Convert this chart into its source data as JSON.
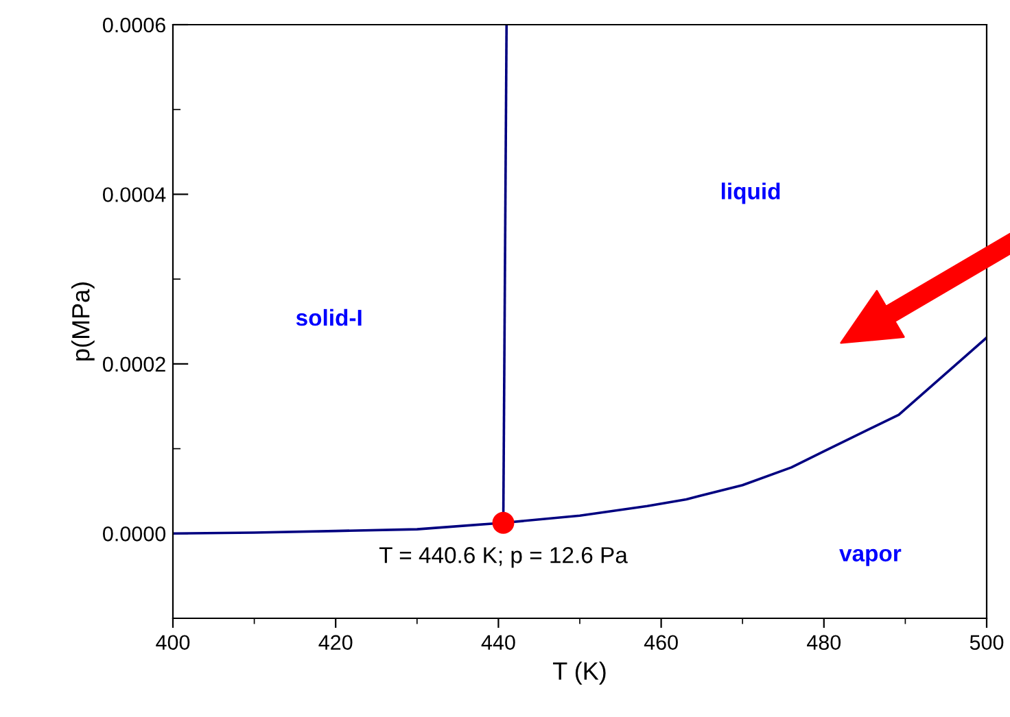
{
  "chart_data": {
    "type": "line",
    "xlabel": "T (K)",
    "ylabel": "p(MPa)",
    "series": [
      {
        "color": "#000080",
        "x": [
          400,
          410,
          420,
          430,
          440.6,
          450,
          458.3,
          463.1,
          470,
          476.0,
          480,
          489.2,
          500
        ],
        "values": [
          0.0,
          1e-06,
          3e-06,
          5e-06,
          1.26e-05,
          2.1e-05,
          3.23e-05,
          4.03e-05,
          5.7e-05,
          7.79e-05,
          9.7e-05,
          0.00014,
          0.000231
        ]
      },
      {
        "type": "line",
        "color": "#000080",
        "x": [
          440.6,
          441.0
        ],
        "values": [
          1.26e-05,
          0.0006
        ]
      },
      {
        "type": "scatter",
        "color": "#ff0000",
        "marker": "circle",
        "x": [
          440.6
        ],
        "values": [
          1.26e-05
        ]
      }
    ],
    "annotations": [
      "solid-I",
      "liquid",
      "vapor",
      {
        "text": "T = 440.6 K; p = 12.6 Pa",
        "x": 440.6,
        "y": 1.26e-05
      }
    ],
    "xlim": [
      400,
      500
    ],
    "xticks": [
      400,
      {
        "value": 410,
        "label": null
      },
      420,
      {
        "value": 430,
        "label": null
      },
      440,
      {
        "value": 450,
        "label": null
      },
      460,
      {
        "value": 470,
        "label": null
      },
      480,
      {
        "value": 490,
        "label": null
      },
      500
    ],
    "ylim": [
      -0.0001,
      0.0006
    ],
    "yticks": [
      {
        "value": 0.0,
        "label": "0.0000"
      },
      {
        "value": 0.0001,
        "label": null
      },
      {
        "value": 0.0002,
        "label": "0.0002"
      },
      {
        "value": 0.0003,
        "label": null
      },
      {
        "value": 0.0004,
        "label": "0.0004"
      },
      {
        "value": 0.0005,
        "label": null
      },
      {
        "value": 0.0006,
        "label": "0.0006"
      }
    ],
    "grid": false,
    "legend": false
  }
}
